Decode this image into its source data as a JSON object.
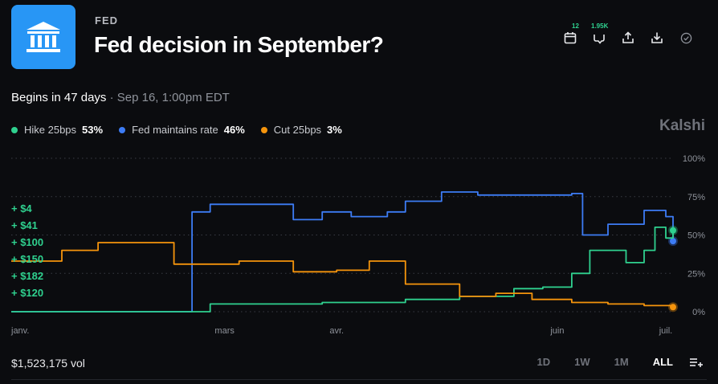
{
  "header": {
    "category": "FED",
    "title": "Fed decision in September?",
    "logo_icon": "bank-icon",
    "actions": [
      {
        "name": "calendar-icon",
        "count": "12"
      },
      {
        "name": "comments-icon",
        "count": "1.95K"
      },
      {
        "name": "share-icon",
        "count": ""
      },
      {
        "name": "download-icon",
        "count": ""
      },
      {
        "name": "check-circle-icon",
        "count": ""
      }
    ]
  },
  "schedule": {
    "begins": "Begins in 47 days",
    "separator": " · ",
    "date": "Sep 16, 1:00pm EDT"
  },
  "legend": [
    {
      "label": "Hike 25bps",
      "pct": "53%",
      "color": "#2fd18f"
    },
    {
      "label": "Fed maintains rate",
      "pct": "46%",
      "color": "#3d7cf5"
    },
    {
      "label": "Cut 25bps",
      "pct": "3%",
      "color": "#f5940c"
    }
  ],
  "brand": "Kalshi",
  "trades": [
    "+ $4",
    "+ $41",
    "+ $100",
    "+ $150",
    "+ $182",
    "+ $120"
  ],
  "chart_data": {
    "type": "line",
    "x_ticks": [
      "janv.",
      "mars",
      "avr.",
      "juin",
      "juil."
    ],
    "y_ticks": [
      "100%",
      "75%",
      "50%",
      "25%",
      "0%"
    ],
    "ylim": [
      0,
      100
    ],
    "grid": true,
    "series": [
      {
        "name": "Fed maintains rate",
        "color": "#3d7cf5",
        "x": [
          "2025-01-01",
          "2025-02-18",
          "2025-02-20",
          "2025-02-25",
          "2025-03-20",
          "2025-03-28",
          "2025-04-05",
          "2025-04-15",
          "2025-04-20",
          "2025-04-30",
          "2025-05-10",
          "2025-05-25",
          "2025-06-05",
          "2025-06-08",
          "2025-06-15",
          "2025-06-25",
          "2025-07-01",
          "2025-07-03"
        ],
        "y": [
          0,
          0,
          65,
          70,
          60,
          65,
          62,
          65,
          72,
          78,
          76,
          76,
          77,
          50,
          57,
          66,
          62,
          46
        ]
      },
      {
        "name": "Hike 25bps",
        "color": "#2fd18f",
        "x": [
          "2025-01-01",
          "2025-02-18",
          "2025-02-25",
          "2025-03-15",
          "2025-03-28",
          "2025-04-10",
          "2025-04-20",
          "2025-05-05",
          "2025-05-20",
          "2025-05-28",
          "2025-06-05",
          "2025-06-10",
          "2025-06-20",
          "2025-06-25",
          "2025-06-28",
          "2025-07-01",
          "2025-07-03"
        ],
        "y": [
          0,
          0,
          5,
          5,
          6,
          6,
          8,
          10,
          15,
          16,
          25,
          40,
          32,
          40,
          55,
          48,
          53
        ]
      },
      {
        "name": "Cut 25bps",
        "color": "#f5940c",
        "x": [
          "2025-01-01",
          "2025-01-15",
          "2025-01-25",
          "2025-02-05",
          "2025-02-15",
          "2025-02-18",
          "2025-03-05",
          "2025-03-20",
          "2025-04-01",
          "2025-04-10",
          "2025-04-20",
          "2025-05-05",
          "2025-05-15",
          "2025-05-25",
          "2025-06-05",
          "2025-06-15",
          "2025-06-25",
          "2025-07-03"
        ],
        "y": [
          33,
          40,
          45,
          45,
          31,
          31,
          33,
          26,
          27,
          33,
          18,
          10,
          12,
          8,
          6,
          5,
          4,
          3
        ]
      }
    ]
  },
  "footer": {
    "volume": "$1,523,175 vol",
    "ranges": [
      "1D",
      "1W",
      "1M",
      "ALL"
    ],
    "active_range": "ALL",
    "menu_icon": "list-add-icon"
  }
}
